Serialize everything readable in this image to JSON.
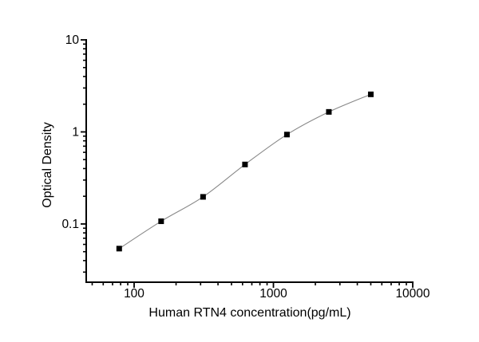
{
  "figure": {
    "background_color": "#ffffff",
    "axis_color": "#000000",
    "curve_color": "#888888",
    "marker_color": "#000000"
  },
  "chart_data": {
    "type": "scatter",
    "title": "",
    "xlabel": "Human RTN4 concentration(pg/mL)",
    "ylabel": "Optical Density",
    "x_scale": "log",
    "y_scale": "log",
    "xlim": [
      45.3,
      10000
    ],
    "ylim": [
      0.0233,
      10
    ],
    "grid": false,
    "legend": false,
    "x_major_ticks": [
      100,
      1000,
      10000
    ],
    "x_tick_labels": [
      "100",
      "1000",
      "10000"
    ],
    "y_major_ticks": [
      10,
      1,
      0.1
    ],
    "y_tick_labels": [
      "10",
      "1",
      "0.1"
    ],
    "marker": "filled-square",
    "line_style": "smooth-curve",
    "series": [
      {
        "x": [
          78.125,
          156.25,
          312.5,
          625,
          1250,
          2500,
          5000
        ],
        "y": [
          0.054,
          0.107,
          0.197,
          0.443,
          0.936,
          1.65,
          2.56
        ]
      }
    ]
  }
}
